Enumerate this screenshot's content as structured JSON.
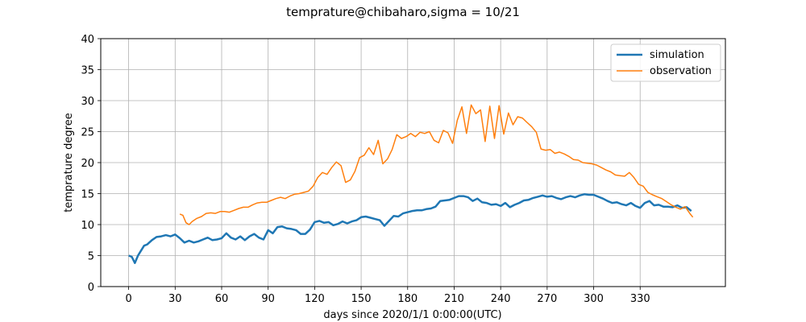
{
  "chart_data": {
    "type": "line",
    "title": "temprature@chibaharo,sigma = 10/21",
    "xlabel": "days since 2020/1/1 0:00:00(UTC)",
    "ylabel": "temprature degree",
    "xlim": [
      -18,
      385
    ],
    "ylim": [
      0,
      40
    ],
    "xticks": [
      0,
      30,
      60,
      90,
      120,
      150,
      180,
      210,
      240,
      270,
      300,
      330
    ],
    "yticks": [
      0,
      5,
      10,
      15,
      20,
      25,
      30,
      35,
      40
    ],
    "grid": true,
    "legend_position": "top-right",
    "series": [
      {
        "name": "simulation",
        "color": "#1f77b4",
        "x": [
          0,
          2,
          4,
          6,
          8,
          10,
          12,
          15,
          18,
          21,
          24,
          27,
          30,
          33,
          36,
          39,
          42,
          45,
          48,
          51,
          54,
          57,
          60,
          63,
          66,
          69,
          72,
          75,
          78,
          81,
          84,
          87,
          90,
          93,
          96,
          99,
          102,
          105,
          108,
          111,
          114,
          117,
          120,
          123,
          126,
          129,
          132,
          135,
          138,
          141,
          144,
          147,
          150,
          153,
          156,
          159,
          162,
          165,
          168,
          171,
          174,
          177,
          180,
          183,
          186,
          189,
          192,
          195,
          198,
          201,
          204,
          207,
          210,
          213,
          216,
          219,
          222,
          225,
          228,
          231,
          234,
          237,
          240,
          243,
          246,
          249,
          252,
          255,
          258,
          261,
          264,
          267,
          270,
          273,
          276,
          279,
          282,
          285,
          288,
          291,
          294,
          297,
          300,
          303,
          306,
          309,
          312,
          315,
          318,
          321,
          324,
          327,
          330,
          333,
          336,
          339,
          342,
          345,
          348,
          351,
          354,
          357,
          360,
          363
        ],
        "y": [
          5.0,
          4.8,
          3.8,
          5.0,
          5.8,
          6.6,
          6.8,
          7.5,
          8.0,
          8.1,
          8.3,
          8.1,
          8.4,
          7.8,
          7.1,
          7.4,
          7.1,
          7.3,
          7.6,
          7.9,
          7.5,
          7.6,
          7.8,
          8.6,
          7.9,
          7.6,
          8.1,
          7.5,
          8.1,
          8.5,
          7.9,
          7.6,
          9.1,
          8.6,
          9.6,
          9.7,
          9.4,
          9.3,
          9.1,
          8.5,
          8.5,
          9.2,
          10.4,
          10.6,
          10.3,
          10.4,
          9.9,
          10.1,
          10.5,
          10.2,
          10.5,
          10.7,
          11.2,
          11.3,
          11.1,
          10.9,
          10.7,
          9.8,
          10.6,
          11.4,
          11.3,
          11.8,
          12.0,
          12.2,
          12.3,
          12.3,
          12.5,
          12.6,
          12.9,
          13.8,
          13.9,
          14.0,
          14.3,
          14.6,
          14.6,
          14.4,
          13.8,
          14.2,
          13.6,
          13.5,
          13.2,
          13.3,
          13.0,
          13.5,
          12.8,
          13.2,
          13.5,
          13.9,
          14.0,
          14.3,
          14.5,
          14.7,
          14.5,
          14.6,
          14.3,
          14.1,
          14.4,
          14.6,
          14.4,
          14.7,
          14.9,
          14.8,
          14.8,
          14.5,
          14.2,
          13.8,
          13.5,
          13.6,
          13.3,
          13.1,
          13.5,
          13.0,
          12.7,
          13.5,
          13.8,
          13.1,
          13.2,
          12.9,
          12.9,
          12.8,
          13.1,
          12.7,
          12.8,
          12.2
        ]
      },
      {
        "name": "observation",
        "color": "#ff7f0e",
        "x": [
          33,
          35,
          37,
          39,
          41,
          44,
          47,
          50,
          53,
          56,
          59,
          62,
          65,
          68,
          71,
          74,
          77,
          80,
          83,
          86,
          89,
          92,
          95,
          98,
          101,
          104,
          107,
          110,
          113,
          116,
          119,
          122,
          125,
          128,
          131,
          134,
          137,
          140,
          143,
          146,
          149,
          152,
          155,
          158,
          161,
          164,
          167,
          170,
          173,
          176,
          179,
          182,
          185,
          188,
          191,
          194,
          197,
          200,
          203,
          206,
          209,
          212,
          215,
          218,
          221,
          224,
          227,
          230,
          233,
          236,
          239,
          242,
          245,
          248,
          251,
          254,
          257,
          260,
          263,
          266,
          269,
          272,
          275,
          278,
          281,
          284,
          287,
          290,
          293,
          296,
          299,
          302,
          305,
          308,
          311,
          314,
          317,
          320,
          323,
          326,
          329,
          332,
          335,
          338,
          341,
          344,
          347,
          350,
          353,
          356,
          359,
          362,
          364
        ],
        "y": [
          11.7,
          11.5,
          10.3,
          10.0,
          10.5,
          11.0,
          11.3,
          11.8,
          11.9,
          11.8,
          12.1,
          12.1,
          12.0,
          12.3,
          12.6,
          12.8,
          12.8,
          13.2,
          13.5,
          13.6,
          13.6,
          13.9,
          14.2,
          14.4,
          14.2,
          14.6,
          14.9,
          15.0,
          15.2,
          15.4,
          16.2,
          17.6,
          18.4,
          18.1,
          19.2,
          20.1,
          19.5,
          16.8,
          17.2,
          18.6,
          20.8,
          21.2,
          22.4,
          21.3,
          23.6,
          19.8,
          20.6,
          22.1,
          24.5,
          23.9,
          24.2,
          24.7,
          24.2,
          24.9,
          24.7,
          25.0,
          23.6,
          23.2,
          25.2,
          24.8,
          23.1,
          26.8,
          29.0,
          24.7,
          29.3,
          27.9,
          28.5,
          23.4,
          29.1,
          23.9,
          29.2,
          24.6,
          28.0,
          26.1,
          27.4,
          27.2,
          26.5,
          25.8,
          24.9,
          22.2,
          22.0,
          22.1,
          21.5,
          21.7,
          21.4,
          21.0,
          20.5,
          20.4,
          20.0,
          19.9,
          19.8,
          19.6,
          19.2,
          18.8,
          18.5,
          18.0,
          17.9,
          17.8,
          18.4,
          17.6,
          16.5,
          16.2,
          15.2,
          14.8,
          14.5,
          14.2,
          13.7,
          13.2,
          12.8,
          12.5,
          12.9,
          11.8,
          11.2
        ]
      }
    ]
  }
}
